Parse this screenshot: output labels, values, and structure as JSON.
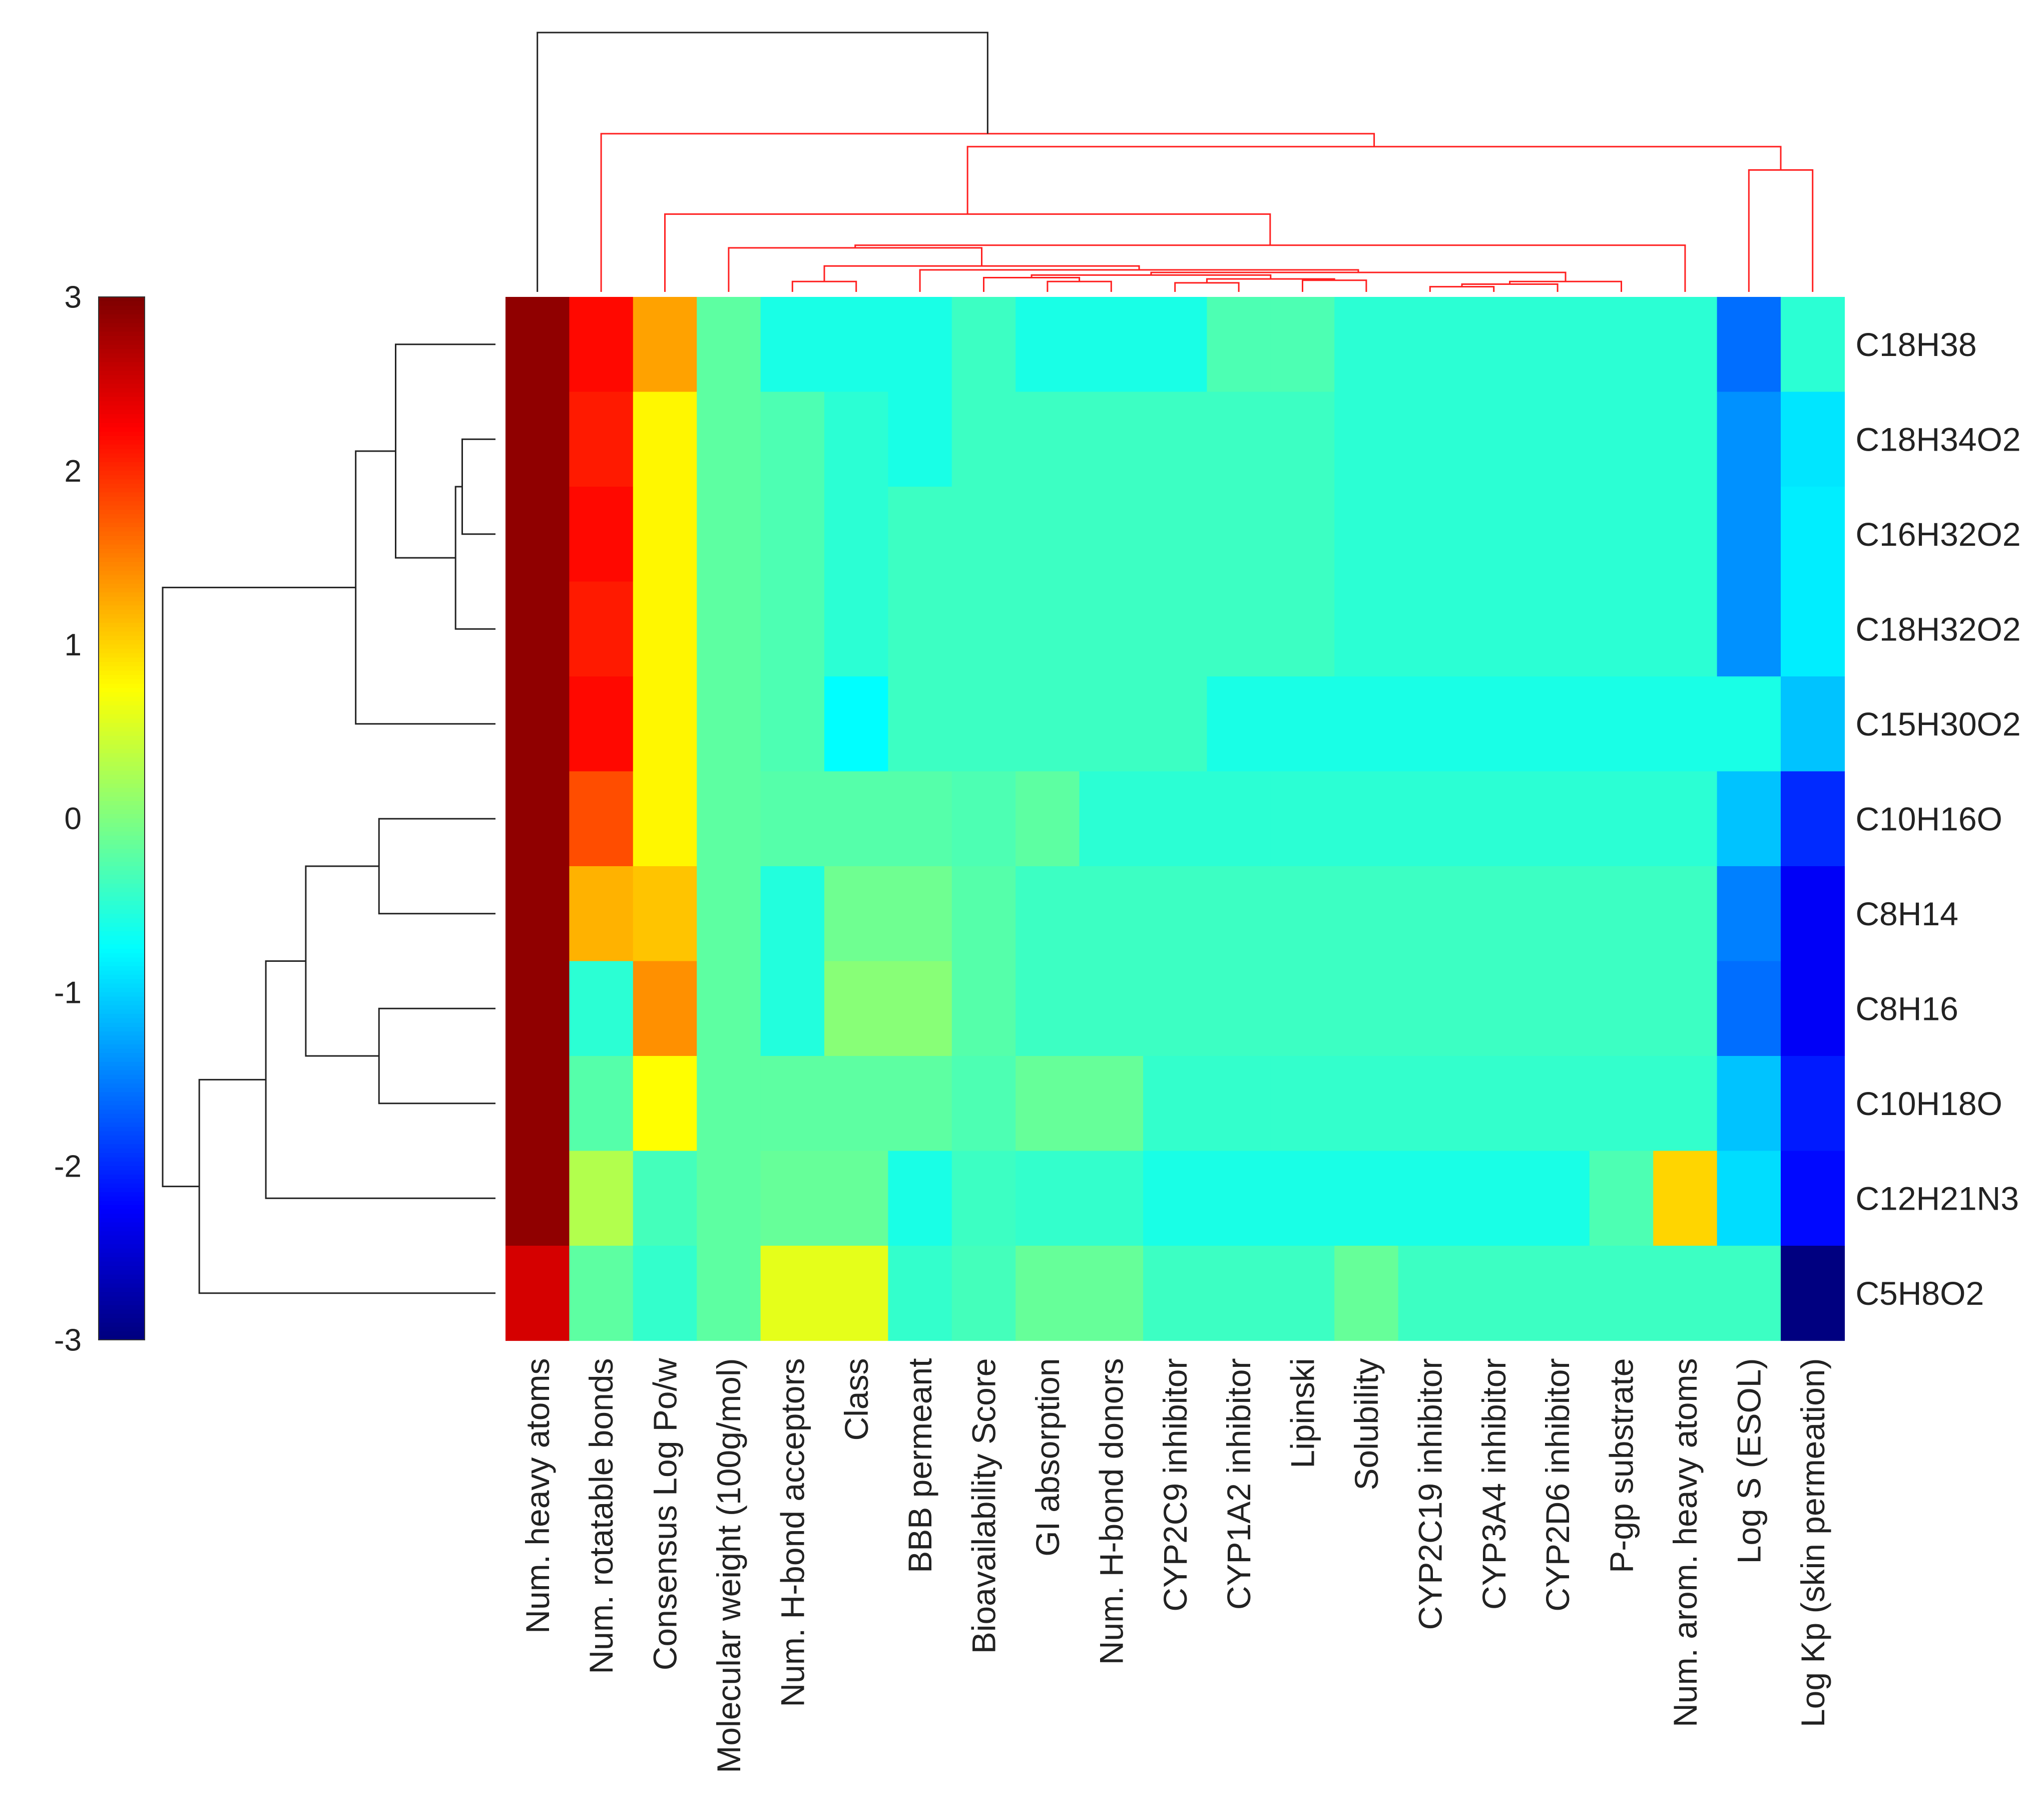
{
  "chart_data": {
    "type": "heatmap",
    "title": "",
    "colormap": "jet",
    "colorbar": {
      "min": -3,
      "max": 3,
      "ticks": [
        "3",
        "2",
        "1",
        "0",
        "-1",
        "-2",
        "-3"
      ]
    },
    "columns": [
      "Num. heavy atoms",
      "Num. rotatable bonds",
      "Consensus Log Po/w",
      "Molecular weight (100g/mol)",
      "Num. H-bond acceptors",
      "Class",
      "BBB permeant",
      "Bioavailability Score",
      "GI absorption",
      "Num. H-bond donors",
      "CYP2C9 inhibitor",
      "CYP1A2 inhibitor",
      "Lipinski",
      "Solubility",
      "CYP2C19 inhibitor",
      "CYP3A4 inhibitor",
      "CYP2D6 inhibitor",
      "P-gp substrate",
      "Num. arom. heavy atoms",
      "Log S (ESOL)",
      "Log Kp (skin permeation)"
    ],
    "rows": [
      "C18H38",
      "C18H34O2",
      "C16H32O2",
      "C18H32O2",
      "C15H30O2",
      "C10H16O",
      "C8H14",
      "C8H16",
      "C10H18O",
      "C12H21N3",
      "C5H8O2"
    ],
    "values": [
      [
        2.9,
        2.2,
        1.3,
        -0.2,
        -0.6,
        -0.6,
        -0.6,
        -0.4,
        -0.6,
        -0.6,
        -0.6,
        -0.3,
        -0.3,
        -0.5,
        -0.5,
        -0.5,
        -0.5,
        -0.5,
        -0.5,
        -1.6,
        -0.5
      ],
      [
        2.9,
        2.1,
        0.8,
        -0.2,
        -0.3,
        -0.5,
        -0.6,
        -0.4,
        -0.4,
        -0.4,
        -0.4,
        -0.4,
        -0.4,
        -0.5,
        -0.5,
        -0.5,
        -0.5,
        -0.5,
        -0.5,
        -1.4,
        -0.9
      ],
      [
        2.9,
        2.2,
        0.8,
        -0.2,
        -0.3,
        -0.5,
        -0.4,
        -0.4,
        -0.4,
        -0.4,
        -0.4,
        -0.4,
        -0.4,
        -0.5,
        -0.5,
        -0.5,
        -0.5,
        -0.5,
        -0.5,
        -1.4,
        -0.85
      ],
      [
        2.9,
        2.1,
        0.8,
        -0.2,
        -0.3,
        -0.5,
        -0.4,
        -0.4,
        -0.4,
        -0.4,
        -0.4,
        -0.4,
        -0.4,
        -0.5,
        -0.5,
        -0.5,
        -0.5,
        -0.5,
        -0.5,
        -1.4,
        -0.85
      ],
      [
        2.9,
        2.2,
        0.8,
        -0.2,
        -0.3,
        -0.75,
        -0.4,
        -0.4,
        -0.4,
        -0.4,
        -0.4,
        -0.6,
        -0.6,
        -0.6,
        -0.6,
        -0.6,
        -0.6,
        -0.6,
        -0.6,
        -0.6,
        -1.1
      ],
      [
        2.9,
        1.8,
        0.8,
        -0.2,
        -0.25,
        -0.25,
        -0.25,
        -0.3,
        -0.2,
        -0.5,
        -0.5,
        -0.5,
        -0.5,
        -0.5,
        -0.5,
        -0.5,
        -0.5,
        -0.5,
        -0.5,
        -1.1,
        -2.0
      ],
      [
        2.9,
        1.2,
        1.1,
        -0.2,
        -0.55,
        -0.1,
        -0.1,
        -0.25,
        -0.4,
        -0.4,
        -0.4,
        -0.4,
        -0.4,
        -0.4,
        -0.4,
        -0.4,
        -0.4,
        -0.4,
        -0.4,
        -1.5,
        -2.3
      ],
      [
        2.9,
        -0.5,
        1.4,
        -0.2,
        -0.55,
        0.05,
        0.05,
        -0.25,
        -0.4,
        -0.4,
        -0.4,
        -0.4,
        -0.4,
        -0.4,
        -0.4,
        -0.4,
        -0.4,
        -0.4,
        -0.4,
        -1.6,
        -2.3
      ],
      [
        2.9,
        -0.25,
        0.75,
        -0.2,
        -0.2,
        -0.2,
        -0.2,
        -0.3,
        -0.15,
        -0.15,
        -0.45,
        -0.45,
        -0.45,
        -0.45,
        -0.45,
        -0.45,
        -0.45,
        -0.45,
        -0.45,
        -1.1,
        -2.1
      ],
      [
        2.9,
        0.3,
        -0.35,
        -0.2,
        -0.15,
        -0.15,
        -0.6,
        -0.4,
        -0.45,
        -0.45,
        -0.6,
        -0.6,
        -0.6,
        -0.6,
        -0.6,
        -0.6,
        -0.6,
        -0.3,
        1.0,
        -0.95,
        -2.2
      ],
      [
        2.5,
        -0.2,
        -0.45,
        -0.2,
        0.6,
        0.6,
        -0.45,
        -0.35,
        -0.15,
        -0.15,
        -0.4,
        -0.4,
        -0.4,
        -0.15,
        -0.4,
        -0.4,
        -0.4,
        -0.4,
        -0.4,
        -0.4,
        -3.0
      ]
    ],
    "row_dendrogram": {
      "order": [
        "C18H38",
        "C18H34O2",
        "C16H32O2",
        "C18H32O2",
        "C15H30O2",
        "C10H16O",
        "C8H14",
        "C8H16",
        "C10H18O",
        "C12H21N3",
        "C5H8O2"
      ],
      "merges": [
        [
          1,
          2,
          0.1
        ],
        [
          11,
          3,
          0.12
        ],
        [
          0,
          12,
          0.3
        ],
        [
          13,
          4,
          0.42
        ],
        [
          5,
          6,
          0.35
        ],
        [
          7,
          8,
          0.35
        ],
        [
          15,
          16,
          0.57
        ],
        [
          17,
          9,
          0.69
        ],
        [
          18,
          10,
          0.89
        ],
        [
          14,
          19,
          1.0
        ]
      ]
    },
    "column_dendrogram": {
      "merges": [
        [
          14,
          15,
          0.02
        ],
        [
          21,
          16,
          0.03
        ],
        [
          22,
          17,
          0.04
        ],
        [
          12,
          13,
          0.045
        ],
        [
          10,
          11,
          0.035
        ],
        [
          24,
          25,
          0.05
        ],
        [
          8,
          9,
          0.04
        ],
        [
          27,
          7,
          0.055
        ],
        [
          28,
          26,
          0.065
        ],
        [
          29,
          23,
          0.075
        ],
        [
          30,
          6,
          0.085
        ],
        [
          4,
          5,
          0.04
        ],
        [
          32,
          31,
          0.1
        ],
        [
          3,
          33,
          0.17
        ],
        [
          34,
          18,
          0.18
        ],
        [
          2,
          35,
          0.3
        ],
        [
          19,
          20,
          0.47
        ],
        [
          36,
          37,
          0.56
        ],
        [
          1,
          38,
          0.61
        ],
        [
          0,
          39,
          1.0
        ]
      ],
      "highlight_color": "#ff2020",
      "root_color": "#222222"
    }
  }
}
